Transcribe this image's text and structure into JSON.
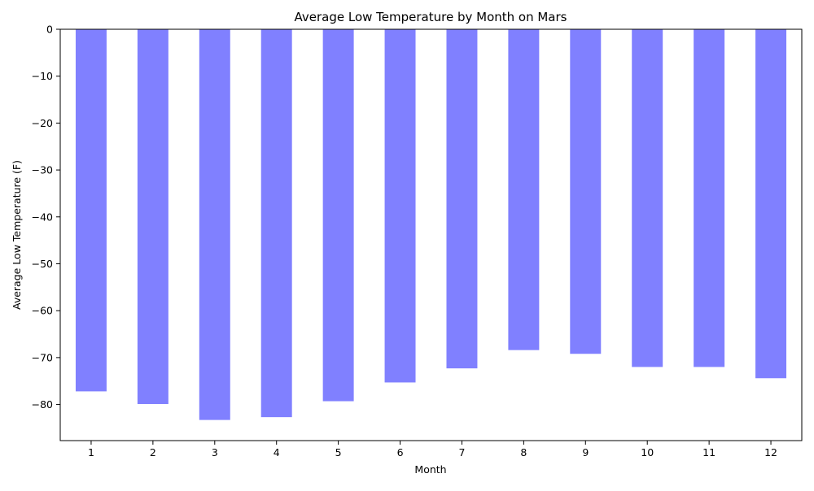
{
  "chart_data": {
    "type": "bar",
    "title": "Average Low Temperature by Month on Mars",
    "xlabel": "Month",
    "ylabel": "Average Low Temperature (F)",
    "categories": [
      "1",
      "2",
      "3",
      "4",
      "5",
      "6",
      "7",
      "8",
      "9",
      "10",
      "11",
      "12"
    ],
    "values": [
      -77.2,
      -79.9,
      -83.3,
      -82.7,
      -79.3,
      -75.3,
      -72.3,
      -68.4,
      -69.2,
      -72.0,
      -72.0,
      -74.4
    ],
    "ylim": [
      -87.7,
      0
    ],
    "yticks": [
      0,
      -10,
      -20,
      -30,
      -40,
      -50,
      -60,
      -70,
      -80
    ],
    "ytick_labels": [
      "0",
      "−10",
      "−20",
      "−30",
      "−40",
      "−50",
      "−60",
      "−70",
      "−80"
    ],
    "bar_color": "#8080ff",
    "grid": false,
    "legend": "none"
  }
}
